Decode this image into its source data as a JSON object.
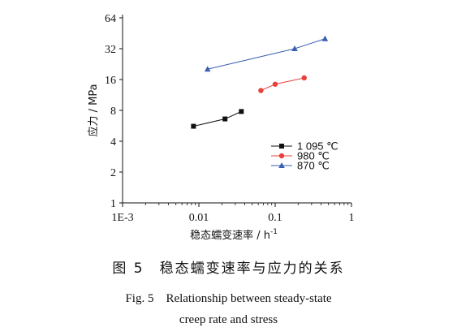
{
  "chart_data": {
    "type": "scatter",
    "xlabel": "稳态蠕变速率 / h",
    "xlabel_sup": "-1",
    "ylabel": "应力 / MPa",
    "x_scale": "log",
    "y_scale": "log2",
    "xlim": [
      0.001,
      1
    ],
    "ylim": [
      1,
      64
    ],
    "x_ticks": [
      0.001,
      0.01,
      0.1,
      1
    ],
    "x_tick_labels": [
      "1E-3",
      "0.01",
      "0.1",
      "1"
    ],
    "y_ticks": [
      1,
      2,
      4,
      8,
      16,
      32,
      64
    ],
    "y_tick_labels": [
      "1",
      "2",
      "4",
      "8",
      "16",
      "32",
      "64"
    ],
    "grid": false,
    "legend_position": "right-center",
    "series": [
      {
        "name": "1 095 ℃",
        "color": "#111111",
        "marker": "square",
        "x": [
          0.0085,
          0.022,
          0.036
        ],
        "y": [
          5.6,
          6.6,
          7.8
        ]
      },
      {
        "name": "980 ℃",
        "color": "#e8403a",
        "marker": "circle",
        "x": [
          0.065,
          0.1,
          0.24
        ],
        "y": [
          12.5,
          14.4,
          16.6
        ]
      },
      {
        "name": "870 ℃",
        "color": "#3a5fb0",
        "marker": "triangle",
        "x": [
          0.013,
          0.18,
          0.45
        ],
        "y": [
          20.2,
          32.0,
          40.0
        ]
      }
    ]
  },
  "caption": {
    "cn": "图 5　稳态蠕变速率与应力的关系",
    "en_line1": "Fig. 5　Relationship between steady-state",
    "en_line2": "creep rate and stress"
  }
}
